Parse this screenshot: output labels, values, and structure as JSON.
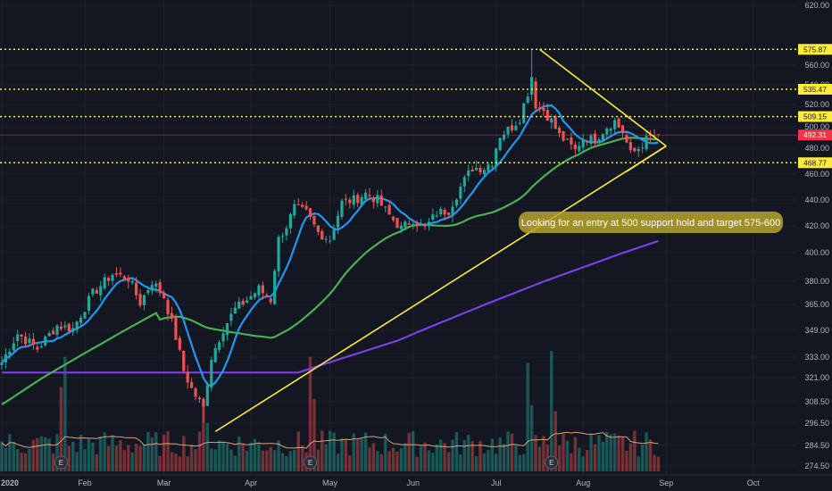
{
  "chart_data": {
    "type": "candlestick",
    "y_axis": {
      "range": [
        272,
        624
      ],
      "ticks": [
        620.0,
        560.0,
        540.0,
        520.0,
        500.0,
        480.0,
        460.0,
        440.0,
        420.0,
        400.0,
        380.0,
        365.0,
        349.0,
        333.0,
        321.0,
        308.5,
        296.5,
        284.5,
        274.5
      ],
      "tick_labels": [
        "620.00",
        "560.00",
        "540.00",
        "520.00",
        "500.00",
        "480.00",
        "460.00",
        "440.00",
        "420.00",
        "400.00",
        "380.00",
        "365.00",
        "349.00",
        "333.00",
        "321.00",
        "308.50",
        "296.50",
        "284.50",
        "274.50"
      ]
    },
    "x_axis": {
      "labels": [
        "2020",
        "Feb",
        "Mar",
        "Apr",
        "May",
        "Jun",
        "Jul",
        "Aug",
        "Sep",
        "Oct"
      ],
      "label_bars": [
        0,
        21,
        41,
        63,
        83,
        104,
        125,
        147,
        168,
        190
      ]
    },
    "horizontal_levels": [
      {
        "value": 575.87,
        "label": "575.87",
        "color": "#ffeb3b"
      },
      {
        "value": 535.47,
        "label": "535.47",
        "color": "#ffeb3b"
      },
      {
        "value": 509.15,
        "label": "509.15",
        "color": "#ffeb3b"
      },
      {
        "value": 468.77,
        "label": "468.77",
        "color": "#ffeb3b"
      }
    ],
    "last_price": {
      "value": 492.31,
      "label": "492.31",
      "color": "#f23645"
    },
    "anchors": [
      {
        "bar": 0,
        "close": 330
      },
      {
        "bar": 4,
        "close": 347
      },
      {
        "bar": 9,
        "close": 338
      },
      {
        "bar": 14,
        "close": 352
      },
      {
        "bar": 18,
        "close": 350
      },
      {
        "bar": 23,
        "close": 372
      },
      {
        "bar": 28,
        "close": 385
      },
      {
        "bar": 32,
        "close": 382
      },
      {
        "bar": 35,
        "close": 366
      },
      {
        "bar": 38,
        "close": 380
      },
      {
        "bar": 41,
        "close": 370
      },
      {
        "bar": 44,
        "close": 345
      },
      {
        "bar": 46,
        "close": 325
      },
      {
        "bar": 48,
        "close": 315
      },
      {
        "bar": 51,
        "close": 305
      },
      {
        "bar": 53,
        "close": 333
      },
      {
        "bar": 56,
        "close": 350
      },
      {
        "bar": 59,
        "close": 362
      },
      {
        "bar": 62,
        "close": 368
      },
      {
        "bar": 65,
        "close": 375
      },
      {
        "bar": 68,
        "close": 368
      },
      {
        "bar": 70,
        "close": 410
      },
      {
        "bar": 72,
        "close": 420
      },
      {
        "bar": 74,
        "close": 434
      },
      {
        "bar": 77,
        "close": 430
      },
      {
        "bar": 80,
        "close": 415
      },
      {
        "bar": 83,
        "close": 410
      },
      {
        "bar": 86,
        "close": 438
      },
      {
        "bar": 89,
        "close": 440
      },
      {
        "bar": 92,
        "close": 445
      },
      {
        "bar": 95,
        "close": 440
      },
      {
        "bar": 98,
        "close": 428
      },
      {
        "bar": 101,
        "close": 418
      },
      {
        "bar": 104,
        "close": 425
      },
      {
        "bar": 107,
        "close": 418
      },
      {
        "bar": 110,
        "close": 430
      },
      {
        "bar": 113,
        "close": 432
      },
      {
        "bar": 116,
        "close": 450
      },
      {
        "bar": 119,
        "close": 465
      },
      {
        "bar": 122,
        "close": 465
      },
      {
        "bar": 124,
        "close": 470
      },
      {
        "bar": 126,
        "close": 492
      },
      {
        "bar": 129,
        "close": 500
      },
      {
        "bar": 131,
        "close": 508
      },
      {
        "bar": 133,
        "close": 532
      },
      {
        "bar": 134,
        "close": 545
      },
      {
        "bar": 135,
        "close": 520
      },
      {
        "bar": 137,
        "close": 515
      },
      {
        "bar": 139,
        "close": 505
      },
      {
        "bar": 141,
        "close": 492
      },
      {
        "bar": 143,
        "close": 485
      },
      {
        "bar": 145,
        "close": 478
      },
      {
        "bar": 147,
        "close": 490
      },
      {
        "bar": 150,
        "close": 488
      },
      {
        "bar": 153,
        "close": 500
      },
      {
        "bar": 155,
        "close": 505
      },
      {
        "bar": 157,
        "close": 495
      },
      {
        "bar": 159,
        "close": 475
      },
      {
        "bar": 161,
        "close": 480
      },
      {
        "bar": 163,
        "close": 488
      },
      {
        "bar": 165,
        "close": 492
      },
      {
        "bar": 166,
        "close": 492.31
      }
    ],
    "volume_peaks": [
      {
        "bar": 15,
        "height": 0.7
      },
      {
        "bar": 16,
        "height": 0.95
      },
      {
        "bar": 51,
        "height": 0.55
      },
      {
        "bar": 52,
        "height": 0.4
      },
      {
        "bar": 78,
        "height": 0.95
      },
      {
        "bar": 79,
        "height": 0.6
      },
      {
        "bar": 133,
        "height": 0.9
      },
      {
        "bar": 134,
        "height": 0.55
      },
      {
        "bar": 139,
        "height": 1.0
      },
      {
        "bar": 140,
        "height": 0.5
      }
    ],
    "earnings_bars": [
      15,
      78,
      139
    ],
    "earnings_label": "E",
    "annotation": "Looking for an entry at 500 support hold and target 575-600",
    "colors": {
      "background": "#131722",
      "grid": "#1f2330",
      "up": "#26a69a",
      "down": "#ef5350",
      "ma_fast": "#2196f3",
      "ma_mid": "#4caf50",
      "ma_slow": "#7b3fe4",
      "volume_ma": "#d9a27a",
      "trendline": "#ffeb3b",
      "annotation_bg": "#b8a42a"
    }
  }
}
